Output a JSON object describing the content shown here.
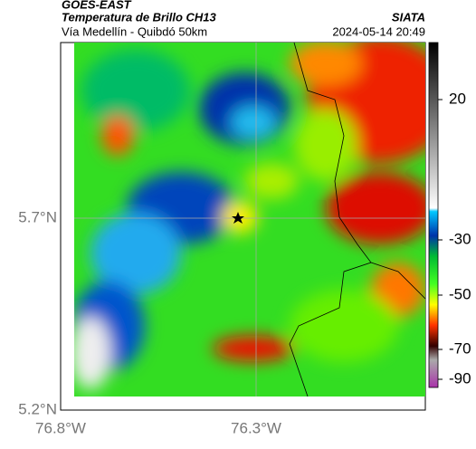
{
  "header": {
    "title": "GOES-EAST",
    "subtitle": "Temperatura de Brillo CH13",
    "location": "Vía Medellín - Quibdó 50km",
    "source": "SIATA",
    "timestamp": "2024-05-14 20:49"
  },
  "axes": {
    "lat_labels": [
      "5.7°N",
      "5.2°N"
    ],
    "lon_labels": [
      "76.8°W",
      "76.3°W"
    ]
  },
  "colorbar": {
    "tick_labels": [
      "20",
      "-30",
      "-50",
      "-70",
      "-90"
    ]
  }
}
